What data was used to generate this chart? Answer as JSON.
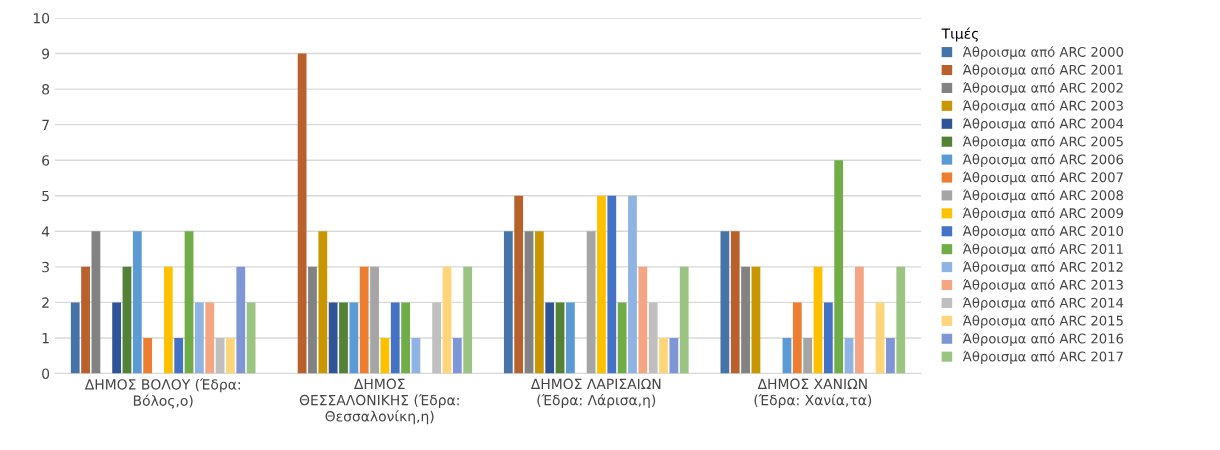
{
  "chart_data": {
    "type": "bar",
    "categories": [
      "ΔΗΜΟΣ ΒΟΛΟΥ (Έδρα:\nΒόλος,ο)",
      "ΔΗΜΟΣ\nΘΕΣΣΑΛΟΝΙΚΗΣ (Έδρα:\nΘεσσαλονίκη,η)",
      "ΔΗΜΟΣ ΛΑΡΙΣΑΙΩΝ\n(Έδρα: Λάρισα,η)",
      "ΔΗΜΟΣ ΧΑΝΙΩΝ\n(Έδρα: Χανία,τα)"
    ],
    "series": [
      {
        "name": "Άθροισμα από ARC 2000",
        "color": "#4674a8",
        "values": [
          2,
          null,
          4,
          4
        ]
      },
      {
        "name": "Άθροισμα από ARC 2001",
        "color": "#b8612a",
        "values": [
          3,
          9,
          5,
          4
        ]
      },
      {
        "name": "Άθροισμα από ARC 2002",
        "color": "#828282",
        "values": [
          4,
          3,
          4,
          3
        ]
      },
      {
        "name": "Άθροισμα από ARC 2003",
        "color": "#c99600",
        "values": [
          null,
          4,
          4,
          3
        ]
      },
      {
        "name": "Άθροισμα από ARC 2004",
        "color": "#2f5597",
        "values": [
          2,
          2,
          2,
          null
        ]
      },
      {
        "name": "Άθροισμα από ARC 2005",
        "color": "#538135",
        "values": [
          3,
          2,
          2,
          null
        ]
      },
      {
        "name": "Άθροισμα από ARC 2006",
        "color": "#5b9bd5",
        "values": [
          4,
          2,
          2,
          1
        ]
      },
      {
        "name": "Άθροισμα από ARC 2007",
        "color": "#ed7d31",
        "values": [
          1,
          3,
          null,
          2
        ]
      },
      {
        "name": "Άθροισμα από ARC 2008",
        "color": "#a5a5a5",
        "values": [
          null,
          3,
          4,
          1
        ]
      },
      {
        "name": "Άθροισμα από ARC 2009",
        "color": "#ffc000",
        "values": [
          3,
          1,
          5,
          3
        ]
      },
      {
        "name": "Άθροισμα από ARC 2010",
        "color": "#4472c4",
        "values": [
          1,
          2,
          5,
          2
        ]
      },
      {
        "name": "Άθροισμα από ARC 2011",
        "color": "#70ad47",
        "values": [
          4,
          2,
          2,
          6
        ]
      },
      {
        "name": "Άθροισμα από ARC 2012",
        "color": "#8fb4e3",
        "values": [
          2,
          1,
          5,
          1
        ]
      },
      {
        "name": "Άθροισμα από ARC 2013",
        "color": "#f4a582",
        "values": [
          2,
          null,
          3,
          3
        ]
      },
      {
        "name": "Άθροισμα από ARC 2014",
        "color": "#bfbfbf",
        "values": [
          1,
          2,
          2,
          null
        ]
      },
      {
        "name": "Άθροισμα από ARC 2015",
        "color": "#ffd57a",
        "values": [
          1,
          3,
          1,
          2
        ]
      },
      {
        "name": "Άθροισμα από ARC 2016",
        "color": "#7f96d6",
        "values": [
          3,
          1,
          1,
          1
        ]
      },
      {
        "name": "Άθροισμα από ARC 2017",
        "color": "#9bc482",
        "values": [
          2,
          3,
          3,
          3
        ]
      }
    ],
    "legend_title": "Τιμές",
    "ylim": [
      0,
      10
    ],
    "yticks": [
      0,
      1,
      2,
      3,
      4,
      5,
      6,
      7,
      8,
      9,
      10
    ],
    "grid": "y",
    "legend": "right"
  }
}
